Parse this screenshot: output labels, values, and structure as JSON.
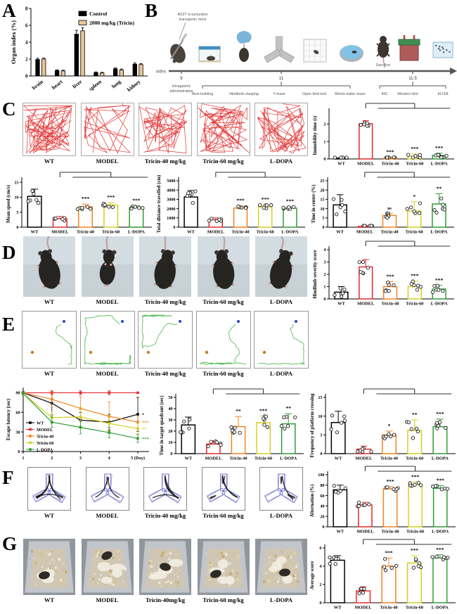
{
  "panel_letters": {
    "a": "A",
    "b": "B",
    "c": "C",
    "d": "D",
    "e": "E",
    "f": "F",
    "g": "G"
  },
  "group_labels_full": [
    "WT",
    "MODEL",
    "Tricin-40 mg/kg",
    "Tricin-60 mg/kg",
    "L-DOPA"
  ],
  "group_labels_short": [
    "WT",
    "MODEL",
    "Tricin-40",
    "Tricin-60",
    "L-DOPA"
  ],
  "nest_photo_labels": [
    "WT",
    "MODEL",
    "Tricin-40mg/kg",
    "Tricin-60 mg/kg",
    "L-DOPA"
  ],
  "group_colors": [
    "#000000",
    "#e8282d",
    "#f5821f",
    "#d4d024",
    "#2e9e35"
  ],
  "timeline": {
    "axis_label": "months",
    "tick_labels": [
      "9",
      "11",
      "11.5"
    ],
    "top_annotation": "A53T α-synuclein transgenic mice",
    "sacrifice_label": "Sacrifice",
    "first_label": "Intragastric administration",
    "tests": [
      "Nest building",
      "Hindlimb clasping",
      "Y-maze",
      "Open field test",
      "Morris water maze"
    ],
    "endpoints": [
      "IHC",
      "Western blot",
      "ELISA"
    ],
    "icons": [
      "gavage-mouse-icon",
      "cage-icon",
      "gloved-hand-mouse-icon",
      "y-maze-icon",
      "open-field-icon",
      "water-maze-icon",
      "sacrifice-mouse-icon",
      "western-blot-icon",
      "elisa-plate-icon"
    ]
  },
  "chart_data": [
    {
      "id": "organ_index",
      "type": "bar",
      "title": "",
      "ylabel": "Organ index (%)",
      "ylim": [
        0,
        8
      ],
      "yticks": [
        0,
        2,
        4,
        6,
        8
      ],
      "categories": [
        "brain",
        "heart",
        "liver",
        "spleen",
        "lung",
        "kidney"
      ],
      "series": [
        {
          "name": "Control",
          "color": "#000000",
          "values": [
            1.95,
            0.65,
            4.95,
            0.4,
            0.85,
            1.4
          ],
          "err": [
            0.15,
            0.08,
            0.45,
            0.08,
            0.1,
            0.15
          ]
        },
        {
          "name": "2000 mg/kg (Tricin)",
          "color": "#eac696",
          "values": [
            2.0,
            0.6,
            5.35,
            0.35,
            0.7,
            1.35
          ],
          "err": [
            0.12,
            0.08,
            0.35,
            0.08,
            0.12,
            0.12
          ]
        }
      ],
      "legend_position": "top-right",
      "grid": false
    },
    {
      "id": "immobility",
      "type": "bar",
      "ylabel": "Immobility time (s)",
      "ylim": [
        0,
        2.7
      ],
      "yticks": [
        0,
        1,
        2
      ],
      "categories": [
        "WT",
        "MODEL",
        "Tricin-40",
        "Tricin-60",
        "L-DOPA"
      ],
      "values": [
        0.04,
        2.02,
        0.05,
        0.15,
        0.2
      ],
      "err": [
        0.03,
        0.18,
        0.05,
        0.13,
        0.13
      ],
      "sig": [
        "",
        "",
        "***",
        "***",
        "***"
      ]
    },
    {
      "id": "mean_speed",
      "type": "bar",
      "ylabel": "Mean speed (cm/s)",
      "ylim": [
        0,
        15.5
      ],
      "yticks": [
        0,
        5,
        10,
        15
      ],
      "categories": [
        "WT",
        "MODEL",
        "Tricin-40",
        "Tricin-60",
        "L-DOPA"
      ],
      "values": [
        10.3,
        2.8,
        6.8,
        7.4,
        6.5
      ],
      "err": [
        2.4,
        0.8,
        0.9,
        0.8,
        0.7
      ],
      "sig": [
        "",
        "",
        "***",
        "***",
        "***"
      ]
    },
    {
      "id": "total_distance",
      "type": "bar",
      "ylabel": "Total distance travelled (cm)",
      "ylim": [
        0,
        5000
      ],
      "yticks": [
        0,
        1000,
        2000,
        3000,
        4000,
        5000
      ],
      "categories": [
        "WT",
        "MODEL",
        "Tricin-40",
        "Tricin-60",
        "L-DOPA"
      ],
      "values": [
        3250,
        800,
        2050,
        2200,
        2050
      ],
      "err": [
        700,
        200,
        250,
        220,
        180
      ],
      "sig": [
        "",
        "",
        "***",
        "***",
        "***"
      ]
    },
    {
      "id": "time_in_center",
      "type": "bar",
      "ylabel": "Time in center (%)",
      "ylim": [
        0,
        25
      ],
      "yticks": [
        0,
        5,
        10,
        15,
        20,
        25
      ],
      "categories": [
        "WT",
        "MODEL",
        "Tricin-40",
        "Tricin-60",
        "L-DOPA"
      ],
      "values": [
        12,
        0.4,
        6.3,
        8.7,
        12.5
      ],
      "err": [
        5.5,
        0.35,
        1.2,
        5.0,
        5.5
      ],
      "sig": [
        "",
        "",
        "ns",
        "*",
        "**"
      ]
    },
    {
      "id": "hindlimb",
      "type": "bar",
      "ylabel": "Hindlimb severity score",
      "ylim": [
        0,
        4
      ],
      "yticks": [
        0,
        1,
        2,
        3,
        4
      ],
      "categories": [
        "WT",
        "MODEL",
        "Tricin-40",
        "Tricin-60",
        "L-DOPA"
      ],
      "values": [
        0.55,
        2.6,
        1.0,
        1.0,
        0.8
      ],
      "err": [
        0.45,
        0.6,
        0.4,
        0.45,
        0.3
      ],
      "sig": [
        "",
        "",
        "***",
        "***",
        "***"
      ]
    },
    {
      "id": "escape_latency",
      "type": "line",
      "ylabel": "Escape latency (sec)",
      "ylim": [
        0,
        98
      ],
      "yticks": [
        0,
        30,
        60,
        90
      ],
      "x": [
        1,
        2,
        3,
        4,
        5
      ],
      "xtick_labels": [
        "1",
        "2",
        "3",
        "4",
        "5 (Day)"
      ],
      "series": [
        {
          "name": "WT",
          "color": "#000000",
          "values": [
            90,
            74,
            48,
            45,
            57
          ],
          "err": [
            2,
            18,
            12,
            12,
            26
          ],
          "end_sig": "*"
        },
        {
          "name": "MODEL",
          "color": "#e8282d",
          "values": [
            90,
            90,
            90,
            90,
            90
          ],
          "err": [
            0,
            3,
            3,
            3,
            0
          ],
          "end_sig": ""
        },
        {
          "name": "Tricin-40",
          "color": "#f5821f",
          "values": [
            90,
            80,
            66,
            54,
            45
          ],
          "err": [
            0,
            12,
            18,
            22,
            10
          ],
          "end_sig": "***"
        },
        {
          "name": "Tricin-60",
          "color": "#d4d024",
          "values": [
            89,
            52,
            53,
            43,
            35
          ],
          "err": [
            2,
            10,
            14,
            12,
            8
          ],
          "end_sig": "**"
        },
        {
          "name": "L-DOPA",
          "color": "#2e9e35",
          "values": [
            89,
            45,
            37,
            29,
            20
          ],
          "err": [
            2,
            8,
            10,
            8,
            6
          ],
          "end_sig": "***"
        }
      ],
      "legend_position": "bottom-left"
    },
    {
      "id": "target_quadrant",
      "type": "bar",
      "ylabel": "Time in target quadrant (sec)",
      "ylim": [
        0,
        50
      ],
      "yticks": [
        0,
        10,
        20,
        30,
        40,
        50
      ],
      "categories": [
        "WT",
        "MODEL",
        "Tricin-40",
        "Tricin-60",
        "L-DOPA"
      ],
      "values": [
        25.5,
        8.5,
        24,
        27.5,
        26.5
      ],
      "err": [
        7,
        3,
        9,
        6,
        9
      ],
      "sig": [
        "",
        "",
        "**",
        "***",
        "**"
      ]
    },
    {
      "id": "platform_crossing",
      "type": "bar",
      "ylabel": "Frequency of platform crossing",
      "ylim": [
        0,
        15
      ],
      "yticks": [
        0,
        5,
        10,
        15
      ],
      "categories": [
        "WT",
        "MODEL",
        "Tricin-40",
        "Tricin-60",
        "L-DOPA"
      ],
      "values": [
        8.3,
        1.2,
        5.0,
        6.2,
        7.2
      ],
      "err": [
        3,
        0.8,
        1,
        2.8,
        2
      ],
      "sig": [
        "",
        "",
        "*",
        "**",
        "***"
      ]
    },
    {
      "id": "alternation",
      "type": "bar",
      "ylabel": "Alternation (%)",
      "ylim": [
        0,
        100
      ],
      "yticks": [
        0,
        20,
        40,
        60,
        80,
        100
      ],
      "categories": [
        "WT",
        "MODEL",
        "Tricin-40",
        "Tricin-60",
        "L-DOPA"
      ],
      "values": [
        71,
        42,
        73,
        81,
        74
      ],
      "err": [
        9,
        5,
        4,
        5,
        5
      ],
      "sig": [
        "",
        "",
        "***",
        "***",
        "***"
      ]
    },
    {
      "id": "average_score",
      "type": "bar",
      "ylabel": "Average score",
      "ylim": [
        0,
        6
      ],
      "yticks": [
        0,
        2,
        4,
        6
      ],
      "categories": [
        "WT",
        "MODEL",
        "Tricin-40",
        "Tricin-60",
        "L-DOPA"
      ],
      "values": [
        4.65,
        1.3,
        4.0,
        4.35,
        4.9
      ],
      "err": [
        0.5,
        0.45,
        0.9,
        0.8,
        0.35
      ],
      "sig": [
        "",
        "",
        "***",
        "***",
        "***"
      ]
    }
  ]
}
